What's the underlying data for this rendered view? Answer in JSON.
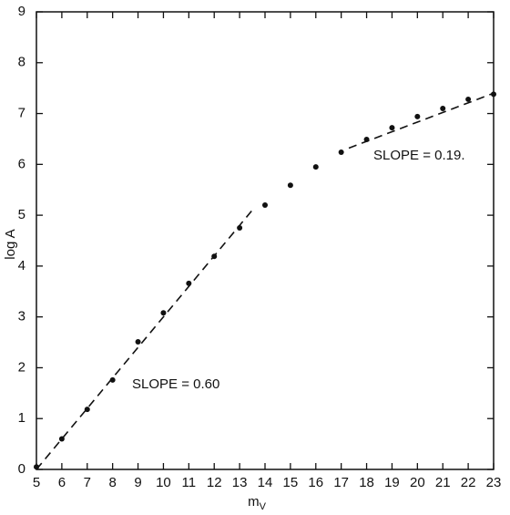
{
  "chart_data": {
    "type": "scatter",
    "x_label": "m",
    "x_label_subscript": "V",
    "y_label": "log A",
    "x": [
      5,
      6,
      7,
      8,
      9,
      10,
      11,
      12,
      13,
      14,
      15,
      16,
      17,
      18,
      19,
      20,
      21,
      22,
      23
    ],
    "values": [
      0.05,
      0.6,
      1.18,
      1.76,
      2.51,
      3.08,
      3.66,
      4.19,
      4.75,
      5.2,
      5.59,
      5.95,
      6.24,
      6.49,
      6.72,
      6.94,
      7.1,
      7.28,
      7.38
    ],
    "color": "#111111",
    "xlim": [
      5,
      23
    ],
    "ylim": [
      0,
      9
    ],
    "xticks": [
      5,
      6,
      7,
      8,
      9,
      10,
      11,
      12,
      13,
      14,
      15,
      16,
      17,
      18,
      19,
      20,
      21,
      22,
      23
    ],
    "yticks": [
      0,
      1,
      2,
      3,
      4,
      5,
      6,
      7,
      8,
      9
    ],
    "fit_lines": [
      {
        "x": [
          5,
          13.5
        ],
        "y": [
          0,
          5.1
        ],
        "label": "SLOPE = 0.60"
      },
      {
        "x": [
          17.3,
          23
        ],
        "y": [
          6.32,
          7.4
        ],
        "label": "SLOPE = 0.19."
      }
    ]
  }
}
